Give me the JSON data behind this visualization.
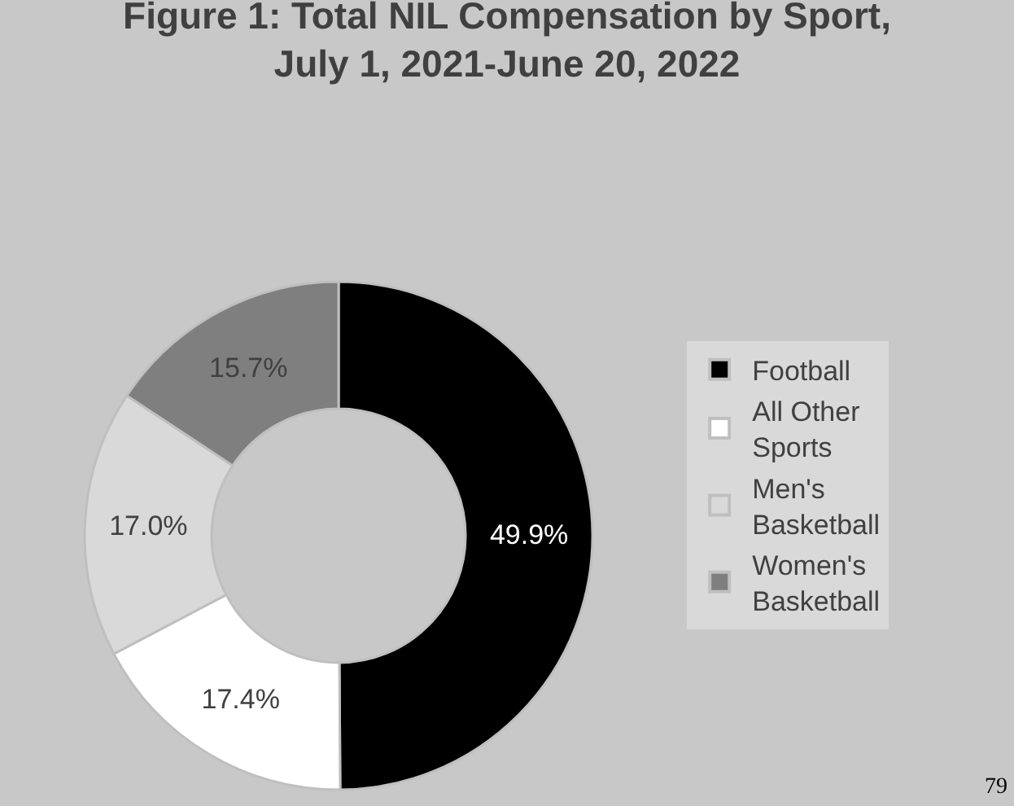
{
  "chart_data": {
    "type": "donut",
    "title": "Figure 1: Total NIL Compensation by Sport,\nJuly 1, 2021-June 20, 2022",
    "categories": [
      "Football",
      "All Other Sports",
      "Men's Basketball",
      "Women's Basketball"
    ],
    "values": [
      49.9,
      17.4,
      17.0,
      15.7
    ],
    "value_labels": [
      "49.9%",
      "17.4%",
      "17.0%",
      "15.7%"
    ],
    "colors": [
      "#000000",
      "#ffffff",
      "#d9d9d9",
      "#7f7f7f"
    ],
    "legend": "right",
    "annotations": [
      "79"
    ]
  }
}
